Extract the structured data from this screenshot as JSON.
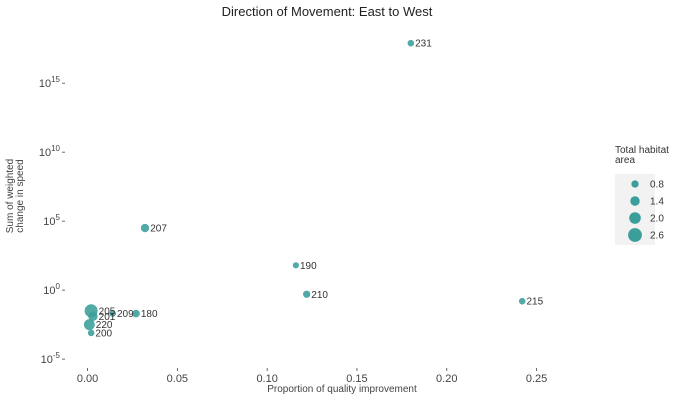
{
  "chart_data": {
    "type": "scatter",
    "title": "Direction of Movement: East to West",
    "xlabel": "Proportion of quality improvement",
    "ylabel_lines": [
      "Sum of weighted",
      "change in speed"
    ],
    "x_ticks": [
      "0.00",
      "0.05",
      "0.10",
      "0.15",
      "0.20",
      "0.25"
    ],
    "x_tick_values": [
      0,
      0.05,
      0.1,
      0.15,
      0.2,
      0.25
    ],
    "y_scale": "log10",
    "y_ticks": [
      {
        "base": "10",
        "exp": "-5",
        "log": -5
      },
      {
        "base": "10",
        "exp": "0",
        "log": 0
      },
      {
        "base": "10",
        "exp": "5",
        "log": 5
      },
      {
        "base": "10",
        "exp": "10",
        "log": 10
      },
      {
        "base": "10",
        "exp": "15",
        "log": 15
      }
    ],
    "xlim": [
      -0.012,
      0.292
    ],
    "ylog_lim": [
      -5.5,
      19
    ],
    "point_color": "#3a9e9a",
    "points": [
      {
        "label": "231",
        "x": 0.18,
        "ylog": 17.9,
        "size": 0.6
      },
      {
        "label": "207",
        "x": 0.032,
        "ylog": 4.5,
        "size": 1.1
      },
      {
        "label": "190",
        "x": 0.116,
        "ylog": 1.8,
        "size": 0.5
      },
      {
        "label": "210",
        "x": 0.122,
        "ylog": -0.3,
        "size": 0.8
      },
      {
        "label": "215",
        "x": 0.242,
        "ylog": -0.8,
        "size": 0.6
      },
      {
        "label": "209",
        "x": 0.014,
        "ylog": -1.7,
        "size": 0.6
      },
      {
        "label": "180",
        "x": 0.027,
        "ylog": -1.7,
        "size": 0.9
      },
      {
        "label": "205",
        "x": 0.002,
        "ylog": -1.5,
        "size": 2.4
      },
      {
        "label": "201",
        "x": 0.003,
        "ylog": -1.9,
        "size": 1.4
      },
      {
        "label": "220",
        "x": 0.001,
        "ylog": -2.5,
        "size": 1.8
      },
      {
        "label": "200",
        "x": 0.002,
        "ylog": -3.1,
        "size": 0.6
      }
    ],
    "legend": {
      "title_lines": [
        "Total habitat",
        "area"
      ],
      "position": "right",
      "entries": [
        {
          "label": "0.8",
          "size": 0.8
        },
        {
          "label": "1.4",
          "size": 1.4
        },
        {
          "label": "2.0",
          "size": 2.0
        },
        {
          "label": "2.6",
          "size": 2.6
        }
      ]
    }
  }
}
